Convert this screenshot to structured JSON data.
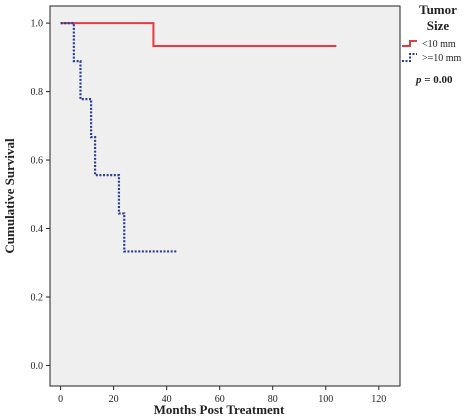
{
  "chart_data": {
    "type": "line",
    "xlabel": "Months Post Treatment",
    "ylabel": "Cumulative Survival",
    "xlim": [
      0,
      120
    ],
    "ylim": [
      0,
      1
    ],
    "x_ticks": [
      "0",
      "20",
      "40",
      "60",
      "80",
      "100",
      "120"
    ],
    "y_ticks": [
      "0.0",
      "0.2",
      "0.4",
      "0.6",
      "0.8",
      "1.0"
    ],
    "grid": false,
    "legend": {
      "title_lines": [
        "Tumor",
        "Size"
      ],
      "position": "top-right",
      "p_label": "p",
      "p_value": "= 0.00"
    },
    "series": [
      {
        "name": "<10 mm",
        "color": "#e8393f",
        "style": "solid",
        "steps": [
          [
            0,
            1.0
          ],
          [
            35,
            1.0
          ],
          [
            35,
            0.933
          ],
          [
            104,
            0.933
          ]
        ]
      },
      {
        "name": ">=10 mm",
        "color": "#2a3a9c",
        "style": "dotted",
        "steps": [
          [
            0,
            1.0
          ],
          [
            5,
            1.0
          ],
          [
            5,
            0.889
          ],
          [
            7.5,
            0.889
          ],
          [
            7.5,
            0.778
          ],
          [
            11.5,
            0.778
          ],
          [
            11.5,
            0.667
          ],
          [
            13,
            0.667
          ],
          [
            13,
            0.556
          ],
          [
            22,
            0.556
          ],
          [
            22,
            0.444
          ],
          [
            24,
            0.444
          ],
          [
            24,
            0.333
          ],
          [
            44,
            0.333
          ]
        ]
      }
    ]
  }
}
